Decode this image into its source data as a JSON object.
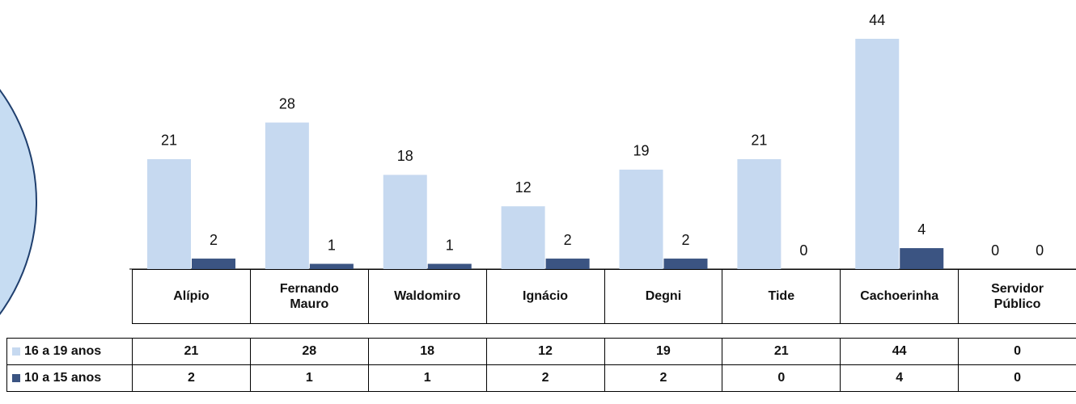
{
  "chart_data": {
    "type": "bar",
    "categories": [
      "Alípio",
      "Fernando Mauro",
      "Waldomiro",
      "Ignácio",
      "Degni",
      "Tide",
      "Cachoerinha",
      "Servidor Público"
    ],
    "series": [
      {
        "name": "16 a 19 anos",
        "color": "#c6d9f0",
        "values": [
          21,
          28,
          18,
          12,
          19,
          21,
          44,
          0
        ]
      },
      {
        "name": "10 a 15 anos",
        "color": "#3b5482",
        "values": [
          2,
          1,
          1,
          2,
          2,
          0,
          4,
          0
        ]
      }
    ]
  }
}
